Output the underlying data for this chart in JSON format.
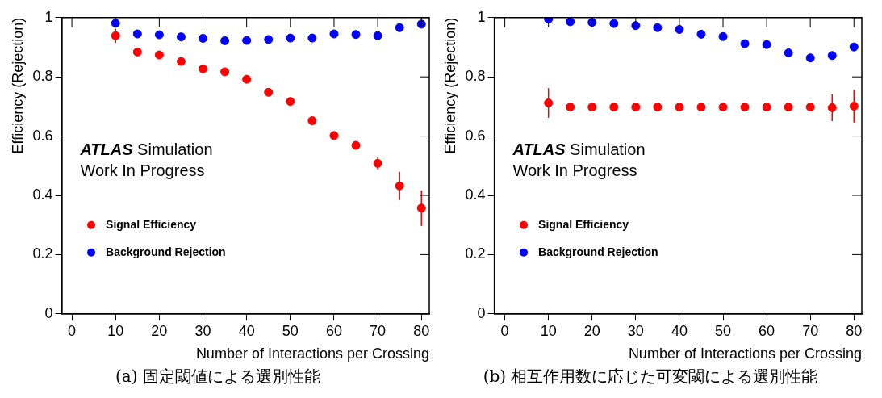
{
  "chart_data": [
    {
      "type": "scatter",
      "title": "(a) 固定閾値による選別性能",
      "xlabel": "Number of Interactions per Crossing",
      "ylabel": "Efficiency (Rejection)",
      "annotations": [
        "ATLAS Simulation",
        "Work In Progress"
      ],
      "x": [
        10,
        15,
        20,
        25,
        30,
        35,
        40,
        45,
        50,
        55,
        60,
        65,
        70,
        75,
        80
      ],
      "xlim": [
        -2.3,
        81.8
      ],
      "xticks": [
        0,
        10,
        20,
        30,
        40,
        50,
        60,
        70,
        80
      ],
      "ylim": [
        0,
        1
      ],
      "yticks": [
        0,
        0.2,
        0.4,
        0.6,
        0.8,
        1
      ],
      "grid": false,
      "legend": "bottom left",
      "marker": "circle",
      "series": [
        {
          "name": "Signal Efficiency",
          "color": "#ff0000",
          "values": [
            0.939,
            0.884,
            0.874,
            0.852,
            0.827,
            0.817,
            0.792,
            0.748,
            0.717,
            0.652,
            0.602,
            0.569,
            0.508,
            0.432,
            0.357
          ],
          "errors": [
            0.024,
            0.008,
            null,
            null,
            null,
            null,
            null,
            null,
            null,
            null,
            null,
            0.01,
            0.02,
            0.048,
            0.06
          ]
        },
        {
          "name": "Background Rejection",
          "color": "#0000ff",
          "values": [
            0.981,
            0.945,
            0.942,
            0.935,
            0.93,
            0.922,
            0.923,
            0.926,
            0.931,
            0.931,
            0.945,
            0.943,
            0.939,
            0.966,
            0.978
          ]
        }
      ]
    },
    {
      "type": "scatter",
      "title": "(b) 相互作用数に応じた可変閾による選別性能",
      "xlabel": "Number of Interactions per Crossing",
      "ylabel": "Efficiency (Rejection)",
      "annotations": [
        "ATLAS Simulation",
        "Work In Progress"
      ],
      "x": [
        10,
        15,
        20,
        25,
        30,
        35,
        40,
        45,
        50,
        55,
        60,
        65,
        70,
        75,
        80
      ],
      "xlim": [
        -2.4,
        81.8
      ],
      "xticks": [
        0,
        10,
        20,
        30,
        40,
        50,
        60,
        70,
        80
      ],
      "ylim": [
        0,
        1
      ],
      "yticks": [
        0,
        0.2,
        0.4,
        0.6,
        0.8,
        1
      ],
      "grid": false,
      "legend": "bottom left",
      "marker": "circle",
      "series": [
        {
          "name": "Signal Efficiency",
          "color": "#ff0000",
          "values": [
            0.712,
            0.698,
            0.698,
            0.698,
            0.698,
            0.698,
            0.698,
            0.698,
            0.698,
            0.698,
            0.698,
            0.698,
            0.698,
            0.696,
            0.701
          ],
          "errors": [
            0.05,
            0.01,
            null,
            null,
            null,
            null,
            null,
            null,
            null,
            null,
            null,
            null,
            0.01,
            0.045,
            0.055
          ]
        },
        {
          "name": "Background Rejection",
          "color": "#0000ff",
          "values": [
            0.995,
            0.986,
            0.984,
            0.98,
            0.973,
            0.966,
            0.96,
            0.944,
            0.936,
            0.912,
            0.909,
            0.881,
            0.864,
            0.872,
            0.901
          ]
        }
      ]
    }
  ]
}
